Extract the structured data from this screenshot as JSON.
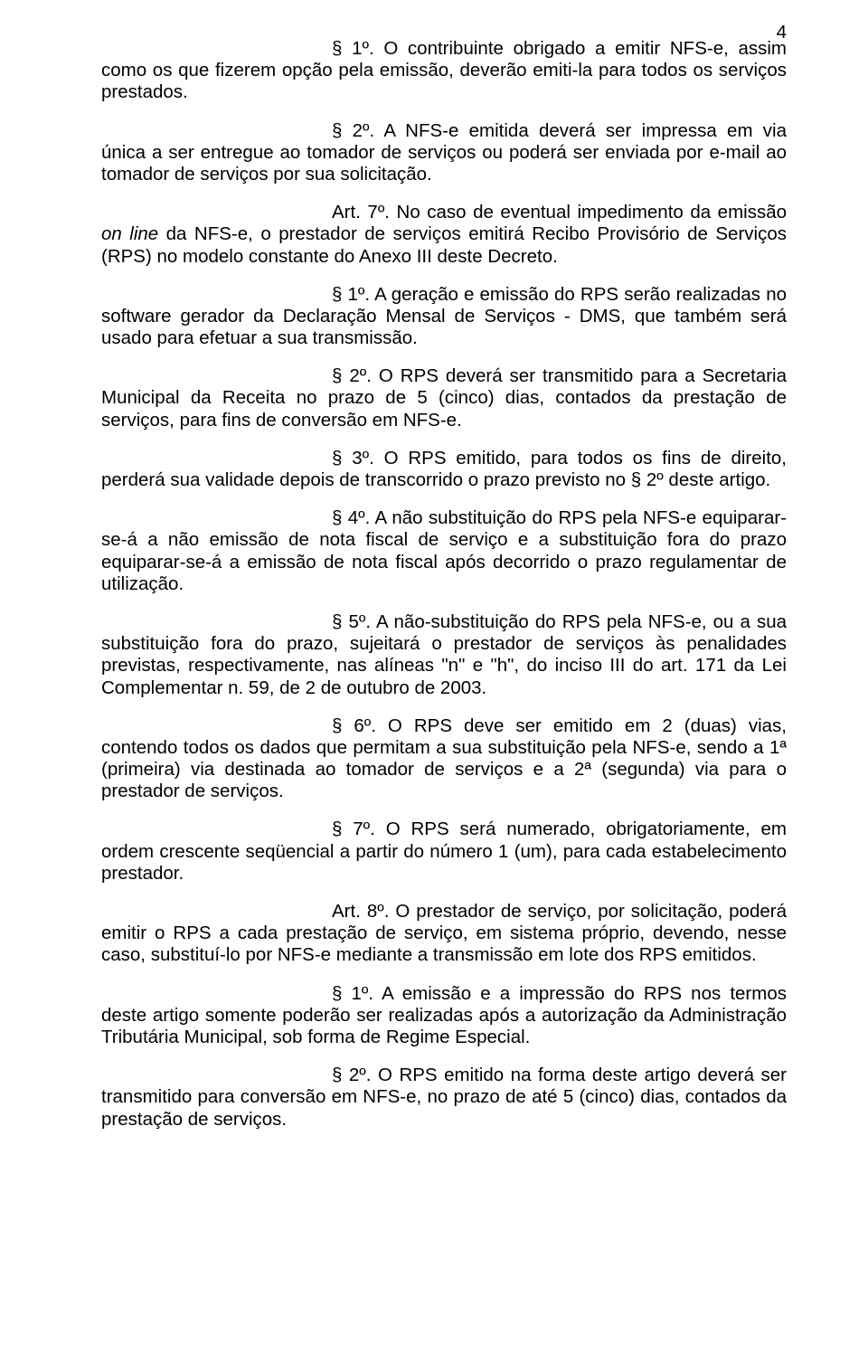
{
  "page_number": "4",
  "paragraphs": [
    {
      "pre": "§ 1º. O contribuinte obrigado a emitir NFS-e, assim como os que fizerem opção pela emissão, deverão emiti-la para todos os serviços prestados."
    },
    {
      "pre": "§ 2º. A NFS-e emitida deverá ser impressa em via única a ser entregue ao tomador de serviços ou poderá ser enviada por e-mail ao tomador de serviços por sua solicitação."
    },
    {
      "pre": "Art. 7º. No caso de eventual impedimento da emissão ",
      "italic": "on line",
      "post": " da NFS-e, o prestador de serviços emitirá Recibo Provisório de Serviços (RPS) no modelo constante do Anexo III deste Decreto."
    },
    {
      "pre": "§ 1º. A geração e emissão do RPS serão realizadas no software gerador da Declaração Mensal de Serviços - DMS, que também será usado para efetuar a sua transmissão."
    },
    {
      "pre": "§ 2º. O RPS deverá ser transmitido para a Secretaria Municipal da Receita no prazo de 5 (cinco) dias, contados da prestação de serviços, para fins de conversão em NFS-e."
    },
    {
      "pre": "§ 3º. O RPS emitido, para todos os fins de direito, perderá sua validade depois de transcorrido o prazo previsto no § 2º deste artigo."
    },
    {
      "pre": "§ 4º. A não substituição do RPS pela NFS-e equiparar-se-á a não emissão de nota fiscal de serviço e a substituição fora do prazo equiparar-se-á a emissão de nota fiscal após decorrido o prazo regulamentar de utilização."
    },
    {
      "pre": "§ 5º. A não-substituição do RPS pela NFS-e, ou a sua substituição fora do prazo, sujeitará o prestador de serviços às penalidades previstas, respectivamente, nas alíneas \"n\" e \"h\", do inciso III do art. 171 da Lei Complementar n. 59, de 2 de outubro de 2003."
    },
    {
      "pre": "§ 6º. O RPS deve ser emitido em 2 (duas) vias, contendo todos os dados que permitam a sua substituição pela NFS-e, sendo a 1ª (primeira) via destinada ao tomador de serviços e a 2ª (segunda) via para o prestador de serviços."
    },
    {
      "pre": "§ 7º. O RPS será numerado, obrigatoriamente, em ordem crescente seqüencial a partir do número 1 (um), para cada estabelecimento prestador."
    },
    {
      "pre": "Art. 8º. O prestador de serviço, por solicitação, poderá emitir o RPS a cada prestação de serviço, em sistema próprio, devendo, nesse caso, substituí-lo por NFS-e mediante a transmissão em lote dos RPS emitidos."
    },
    {
      "pre": "§ 1º. A emissão e a impressão do RPS nos termos deste artigo somente poderão ser realizadas após a autorização da Administração Tributária Municipal, sob forma de Regime Especial."
    },
    {
      "pre": "§ 2º. O RPS emitido na forma deste artigo deverá ser transmitido para conversão em NFS-e, no prazo de até 5 (cinco) dias, contados da prestação de serviços."
    }
  ]
}
